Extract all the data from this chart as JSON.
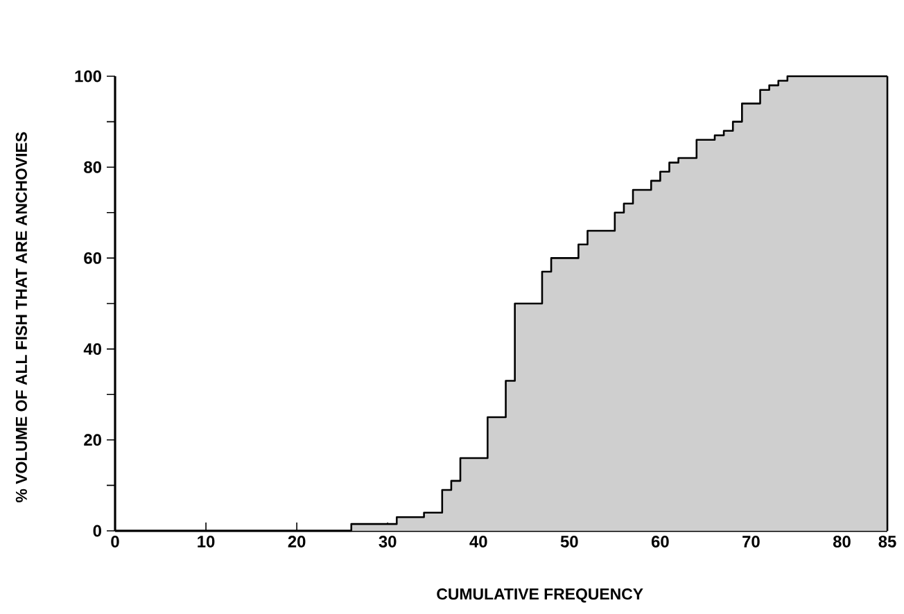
{
  "chart_data": {
    "type": "area",
    "xlabel": "CUMULATIVE FREQUENCY",
    "ylabel": "% VOLUME OF ALL FISH THAT ARE ANCHOVIES",
    "x": [
      0,
      26,
      26,
      31,
      31,
      34,
      34,
      36,
      36,
      37,
      37,
      38,
      38,
      41,
      41,
      43,
      43,
      44,
      44,
      47,
      47,
      48,
      48,
      51,
      51,
      52,
      52,
      55,
      55,
      56,
      56,
      57,
      57,
      59,
      59,
      60,
      60,
      61,
      61,
      62,
      62,
      64,
      64,
      66,
      66,
      67,
      67,
      68,
      68,
      69,
      69,
      71,
      71,
      72,
      72,
      73,
      73,
      74,
      74,
      85
    ],
    "values": [
      0,
      0,
      1.5,
      1.5,
      3,
      3,
      4,
      4,
      9,
      9,
      11,
      11,
      16,
      16,
      25,
      25,
      33,
      33,
      50,
      50,
      57,
      57,
      60,
      60,
      63,
      63,
      66,
      66,
      70,
      70,
      72,
      72,
      75,
      75,
      77,
      77,
      79,
      79,
      81,
      81,
      82,
      82,
      86,
      86,
      87,
      87,
      88,
      88,
      90,
      90,
      94,
      94,
      97,
      97,
      98,
      98,
      99,
      99,
      100,
      100
    ],
    "color": "#cfcfcf",
    "xlim": [
      0,
      85
    ],
    "ylim": [
      0,
      100
    ],
    "xticks": [
      0,
      10,
      20,
      30,
      40,
      50,
      60,
      70,
      80,
      85
    ],
    "yticks": [
      0,
      {
        "value": 10,
        "label": null
      },
      20,
      {
        "value": 30,
        "label": null
      },
      40,
      {
        "value": 50,
        "label": null
      },
      60,
      {
        "value": 70,
        "label": null
      },
      80,
      {
        "value": 90,
        "label": null
      },
      100
    ],
    "grid": false,
    "marker": "none",
    "line_style": "solid"
  }
}
